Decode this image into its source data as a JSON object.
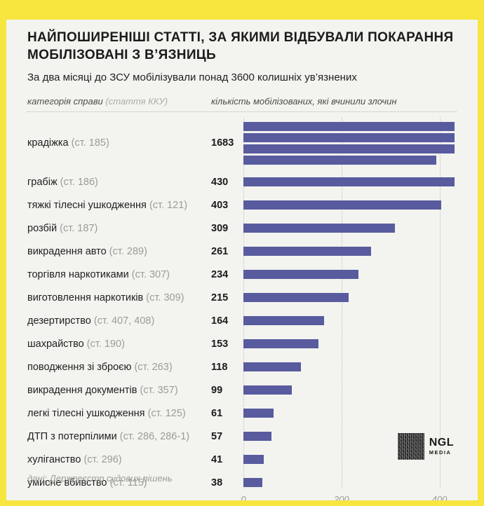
{
  "frame": {
    "accent_color": "#f6e63e",
    "background_color": "#f3f3f0"
  },
  "header": {
    "title": "НАЙПОШИРЕНІШІ СТАТТІ, ЗА ЯКИМИ ВІДБУВАЛИ ПОКАРАННЯ МОБІЛІЗОВАНІ З В’ЯЗНИЦЬ",
    "subtitle": "За два місяці до ЗСУ мобілізували понад 3600 колишніх ув’язнених"
  },
  "columns": {
    "left_label": "категорія справи",
    "left_label_note": "(стаття ККУ)",
    "right_label": "кількість мобілізованих, які вчинили злочин"
  },
  "chart_data": {
    "type": "bar",
    "orientation": "horizontal",
    "title": "Найпоширеніші статті, за якими відбували покарання мобілізовані з в’язниць",
    "xlabel": "кількість мобілізованих, які вчинили злочин",
    "ylabel": "категорія справи (стаття ККУ)",
    "xlim": [
      0,
      435
    ],
    "axis_ticks": [
      0,
      200,
      400
    ],
    "bar_wrap_value": 430,
    "bar_color": "#585b9d",
    "grid": true,
    "rows": [
      {
        "category": "крадіжка",
        "article": "(ст. 185)",
        "value": 1683
      },
      {
        "category": "грабіж",
        "article": "(ст. 186)",
        "value": 430
      },
      {
        "category": "тяжкі тілесні ушкодження",
        "article": "(ст. 121)",
        "value": 403
      },
      {
        "category": "розбій",
        "article": "(ст. 187)",
        "value": 309
      },
      {
        "category": "викрадення авто",
        "article": "(ст. 289)",
        "value": 261
      },
      {
        "category": "торгівля наркотиками",
        "article": "(ст. 307)",
        "value": 234
      },
      {
        "category": "виготовлення наркотиків",
        "article": "(ст. 309)",
        "value": 215
      },
      {
        "category": "дезертирство",
        "article": "(ст. 407, 408)",
        "value": 164
      },
      {
        "category": "шахрайство",
        "article": "(ст. 190)",
        "value": 153
      },
      {
        "category": "поводження зі зброєю",
        "article": "(ст. 263)",
        "value": 118
      },
      {
        "category": "викрадення документів",
        "article": "(ст. 357)",
        "value": 99
      },
      {
        "category": "легкі тілесні ушкодження",
        "article": "(ст. 125)",
        "value": 61
      },
      {
        "category": "ДТП з потерпілими",
        "article": "(ст. 286, 286-1)",
        "value": 57
      },
      {
        "category": "хуліганство",
        "article": "(ст. 296)",
        "value": 41
      },
      {
        "category": "умисне вбивство",
        "article": "(ст. 115)",
        "value": 38
      }
    ]
  },
  "footer": {
    "source": "дані: Держреєстр судових рішень"
  },
  "logo": {
    "name": "NGL",
    "sub": "MEDIA"
  }
}
